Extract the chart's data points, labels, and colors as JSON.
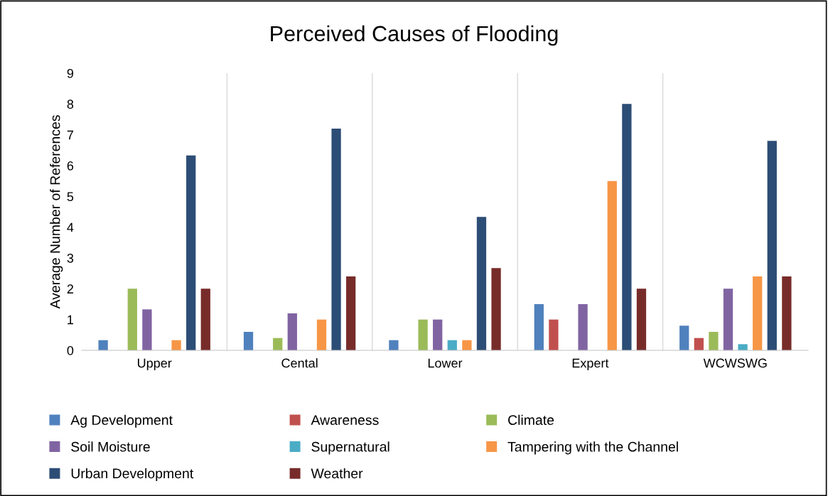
{
  "chart_data": {
    "type": "bar",
    "title": "Perceived Causes of Flooding",
    "ylabel": "Average Number of References",
    "categories": [
      "Upper",
      "Cental",
      "Lower",
      "Expert",
      "WCWSWG"
    ],
    "series": [
      {
        "name": "Ag Development",
        "color": "#4f81bd",
        "values": [
          0.33,
          0.6,
          0.33,
          1.5,
          0.8
        ]
      },
      {
        "name": "Awareness",
        "color": "#c0504d",
        "values": [
          0,
          0,
          0,
          1,
          0.4
        ]
      },
      {
        "name": "Climate",
        "color": "#9bbb59",
        "values": [
          2,
          0.4,
          1,
          0,
          0.6
        ]
      },
      {
        "name": "Soil Moisture",
        "color": "#8064a2",
        "values": [
          1.33,
          1.2,
          1,
          1.5,
          2
        ]
      },
      {
        "name": "Supernatural",
        "color": "#4bacc6",
        "values": [
          0,
          0,
          0.33,
          0,
          0.2
        ]
      },
      {
        "name": "Tampering with the Channel",
        "color": "#f79646",
        "values": [
          0.33,
          1,
          0.33,
          5.5,
          2.4
        ]
      },
      {
        "name": "Urban Development",
        "color": "#2c4d75",
        "values": [
          6.33,
          7.2,
          4.33,
          8,
          6.8
        ]
      },
      {
        "name": "Weather",
        "color": "#772c2a",
        "values": [
          2,
          2.4,
          2.67,
          2,
          2.4
        ]
      }
    ],
    "ylim": [
      0,
      9
    ],
    "yticks": [
      0,
      1,
      2,
      3,
      4,
      5,
      6,
      7,
      8,
      9
    ],
    "grid": "x",
    "legend": "bottom"
  }
}
